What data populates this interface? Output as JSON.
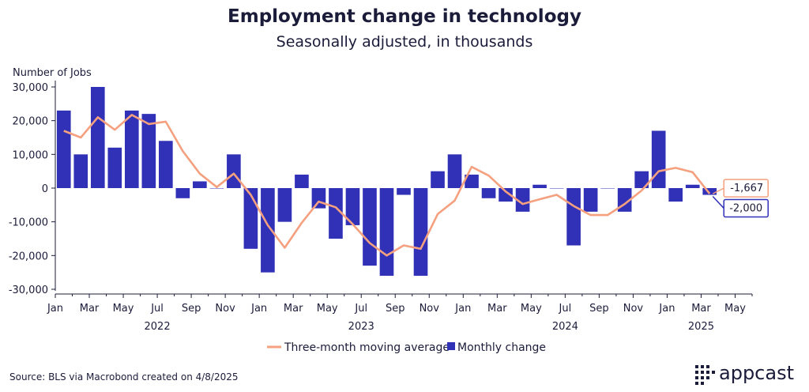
{
  "title": "Employment change in technology",
  "subtitle": "Seasonally adjusted, in thousands",
  "source": "Source: BLS via Macrobond created on 4/8/2025",
  "brand": {
    "name": "appcast",
    "icon": "appcast-dots-logo-icon"
  },
  "colors": {
    "bar": "#3131b8",
    "line": "#f5a07f",
    "axis": "#1b1b3a"
  },
  "chart_data": {
    "type": "bar",
    "ylabel": "Number of Jobs",
    "ylim": [
      -30000,
      30000
    ],
    "yticks": [
      "30,000",
      "20,000",
      "10,000",
      "0",
      "-10,000",
      "-20,000",
      "-30,000"
    ],
    "ytick_values": [
      30000,
      20000,
      10000,
      0,
      -10000,
      -20000,
      -30000
    ],
    "xtick_labels": [
      "Jan",
      "Mar",
      "May",
      "Jul",
      "Sep",
      "Nov",
      "Jan",
      "Mar",
      "May",
      "Jul",
      "Sep",
      "Nov",
      "Jan",
      "Mar",
      "May",
      "Jul",
      "Sep",
      "Nov",
      "Jan",
      "Mar",
      "May"
    ],
    "year_labels": [
      "2022",
      "2023",
      "2024",
      "2025"
    ],
    "grid": false,
    "legend_position": "bottom-center",
    "categories": [
      "Jan 2022",
      "Feb 2022",
      "Mar 2022",
      "Apr 2022",
      "May 2022",
      "Jun 2022",
      "Jul 2022",
      "Aug 2022",
      "Sep 2022",
      "Oct 2022",
      "Nov 2022",
      "Dec 2022",
      "Jan 2023",
      "Feb 2023",
      "Mar 2023",
      "Apr 2023",
      "May 2023",
      "Jun 2023",
      "Jul 2023",
      "Aug 2023",
      "Sep 2023",
      "Oct 2023",
      "Nov 2023",
      "Dec 2023",
      "Jan 2024",
      "Feb 2024",
      "Mar 2024",
      "Apr 2024",
      "May 2024",
      "Jun 2024",
      "Jul 2024",
      "Aug 2024",
      "Sep 2024",
      "Oct 2024",
      "Nov 2024",
      "Dec 2024",
      "Jan 2025",
      "Feb 2025",
      "Mar 2025"
    ],
    "series": [
      {
        "name": "Monthly change",
        "kind": "bar",
        "values": [
          23000,
          10000,
          30000,
          12000,
          23000,
          22000,
          14000,
          -3000,
          2000,
          0,
          10000,
          -18000,
          -25000,
          -10000,
          4000,
          -6000,
          -15000,
          -11000,
          -23000,
          -26000,
          -2000,
          -26000,
          5000,
          10000,
          4000,
          -3000,
          -4000,
          -7000,
          1000,
          0,
          -17000,
          -7000,
          0,
          -7000,
          5000,
          17000,
          -4000,
          1000,
          -2000
        ]
      },
      {
        "name": "Three-month moving average",
        "kind": "line",
        "values": [
          17000,
          15000,
          21000,
          17300,
          21700,
          19000,
          19700,
          11000,
          4300,
          300,
          4300,
          -2000,
          -11000,
          -17700,
          -10300,
          -4000,
          -5700,
          -10700,
          -16300,
          -20000,
          -17000,
          -18000,
          -7700,
          -3700,
          6300,
          3700,
          -1000,
          -4700,
          -3300,
          -2000,
          -5300,
          -8000,
          -8000,
          -4700,
          -700,
          5000,
          6000,
          4700,
          -1667
        ]
      }
    ],
    "end_labels": {
      "line": "-1,667",
      "bar": "-2,000"
    }
  }
}
